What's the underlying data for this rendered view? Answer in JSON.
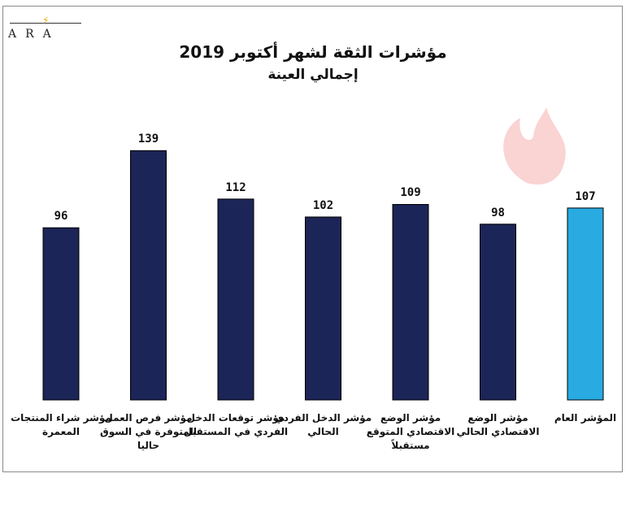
{
  "logo": {
    "text": "ARA",
    "icon": "bolt-icon"
  },
  "watermark": {
    "icon": "flame-watermark-icon",
    "color": "#f2a9a9"
  },
  "chart_data": {
    "type": "bar",
    "title": "مؤشرات الثقة لشهر أكتوبر 2019",
    "subtitle": "إجمالي العينة",
    "categories": [
      "مؤشر شراء المنتجات المعمرة",
      "مؤشر فرص العمل المتوفرة في السوق حاليا",
      "مؤشر توقعات الدخل الفردي في المستقبل",
      "مؤشر الدخل الفردي الحالي",
      "مؤشر الوضع الاقتصادي المتوقع مستقبلاً",
      "مؤشر الوضع الاقتصادي الحالي",
      "المؤشر العام"
    ],
    "values": [
      96,
      139,
      112,
      102,
      109,
      98,
      107
    ],
    "colors": [
      "#1c2557",
      "#1c2557",
      "#1c2557",
      "#1c2557",
      "#1c2557",
      "#1c2557",
      "#29abe2"
    ],
    "ylim": [
      0,
      155
    ],
    "grid": false,
    "legend": "none"
  }
}
